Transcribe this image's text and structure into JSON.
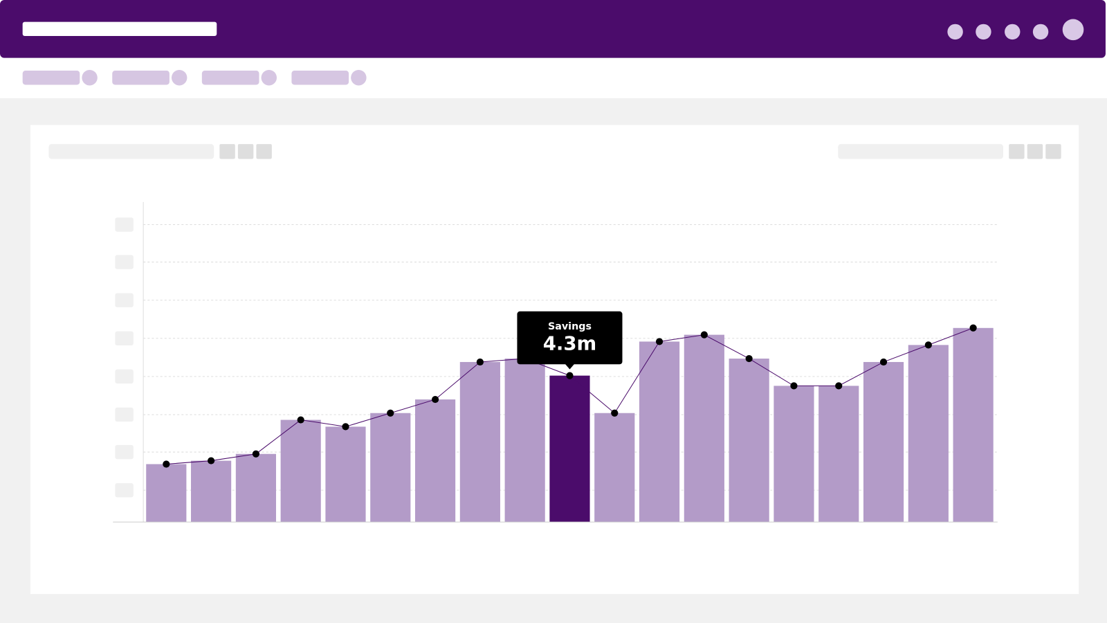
{
  "chart_data": {
    "type": "bar",
    "categories": [
      null,
      null,
      null,
      null,
      null,
      null,
      null,
      null,
      null,
      null,
      null,
      null,
      null,
      null,
      null,
      null,
      null,
      null,
      null
    ],
    "series": [
      {
        "name": "Savings",
        "color": "#b39bc8",
        "line_color": "#4b0c6b",
        "values": [
          1.7,
          1.8,
          2.0,
          3.0,
          2.8,
          3.2,
          3.6,
          4.7,
          4.8,
          4.3,
          3.2,
          5.3,
          5.5,
          4.8,
          4.0,
          4.0,
          4.7,
          5.2,
          5.7
        ]
      }
    ],
    "highlight": 9,
    "highlight_color": "#4b0c6b",
    "tooltip": {
      "label": "4.3m"
    },
    "ylim": [
      0,
      9.4
    ]
  }
}
